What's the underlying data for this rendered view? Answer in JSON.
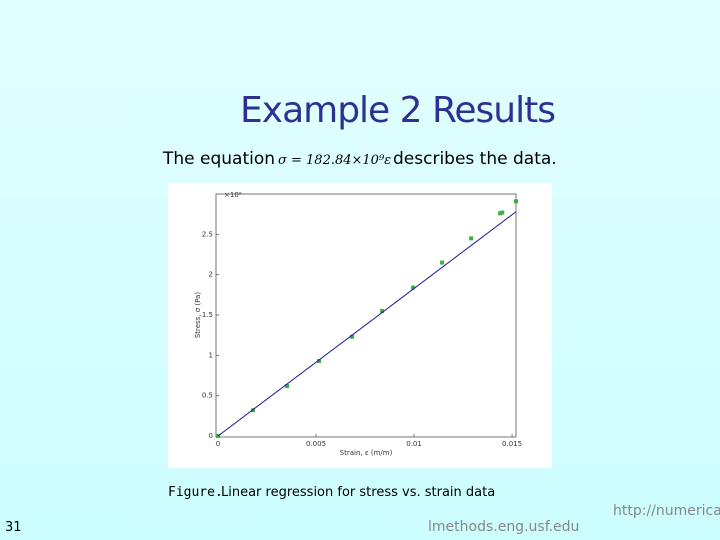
{
  "slide": {
    "title": "Example 2 Results",
    "lead": "The equation",
    "equation": "σ = 182.84×10⁹ε",
    "trail": "describes the data.",
    "caption_label": "Figure.",
    "caption": "Linear regression for stress vs. strain data",
    "page_number": "31",
    "footer": "lmethods.eng.usf.edu",
    "url": "http://numerica"
  },
  "chart_data": {
    "type": "scatter",
    "x_label": "Strain, ε (m/m)",
    "y_label": "Stress, σ (Pa)",
    "y_multiplier": "×10⁹",
    "xlim": [
      0,
      0.0152
    ],
    "ylim": [
      0,
      3
    ],
    "xticks": [
      0,
      0.005,
      0.01,
      0.015
    ],
    "yticks": [
      0,
      0.5,
      1,
      1.5,
      2,
      2.5
    ],
    "series": [
      {
        "mode": "markers",
        "color": "#3cb043",
        "x": [
          0,
          0.00179,
          0.00352,
          0.00515,
          0.00684,
          0.00837,
          0.00995,
          0.01143,
          0.01291,
          0.01439,
          0.0145,
          0.0152
        ],
        "values": [
          0,
          0.32,
          0.62,
          0.93,
          1.23,
          1.55,
          1.84,
          2.15,
          2.45,
          2.76,
          2.77,
          2.91
        ]
      },
      {
        "mode": "line",
        "color": "#1a1a8c",
        "x": [
          0,
          0.0152
        ],
        "values": [
          0,
          2.78
        ]
      }
    ]
  }
}
